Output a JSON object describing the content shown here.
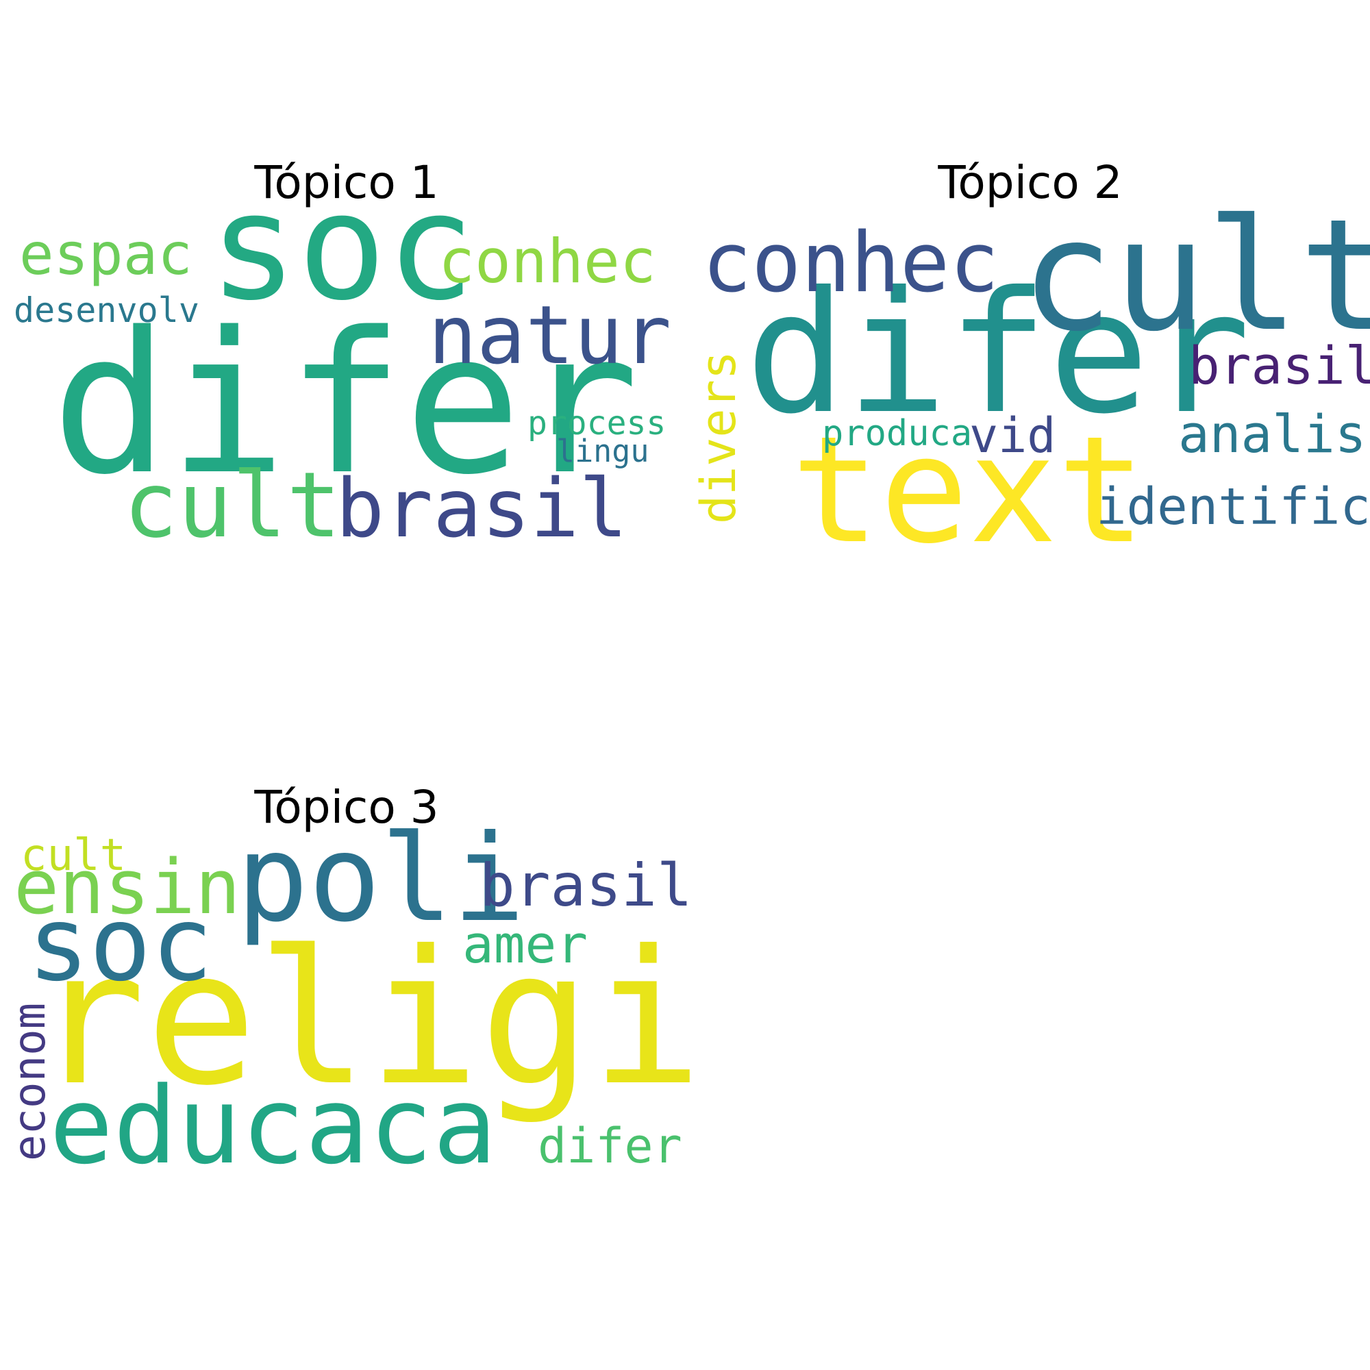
{
  "panels": [
    {
      "title": "Tópico 1",
      "words": [
        {
          "text": "difer",
          "color": "#22a884"
        },
        {
          "text": "soc",
          "color": "#23a983"
        },
        {
          "text": "natur",
          "color": "#3b528b"
        },
        {
          "text": "brasil",
          "color": "#3e4989"
        },
        {
          "text": "cult",
          "color": "#4ec36b"
        },
        {
          "text": "conhec",
          "color": "#8fd744"
        },
        {
          "text": "espac",
          "color": "#6ccd5a"
        },
        {
          "text": "desenvolv",
          "color": "#2a788e"
        },
        {
          "text": "process",
          "color": "#2ab07f"
        },
        {
          "text": "lingu",
          "color": "#2c728e"
        }
      ]
    },
    {
      "title": "Tópico 2",
      "words": [
        {
          "text": "difer",
          "color": "#21908d"
        },
        {
          "text": "cult",
          "color": "#2c738e"
        },
        {
          "text": "text",
          "color": "#fde725"
        },
        {
          "text": "conhec",
          "color": "#3b528b"
        },
        {
          "text": "brasil",
          "color": "#482173"
        },
        {
          "text": "analis",
          "color": "#2a788e"
        },
        {
          "text": "identific",
          "color": "#31688e"
        },
        {
          "text": "divers",
          "color": "#e4e419"
        },
        {
          "text": "vid",
          "color": "#3e4989"
        },
        {
          "text": "produca",
          "color": "#22a884"
        }
      ]
    },
    {
      "title": "Tópico 3",
      "words": [
        {
          "text": "religi",
          "color": "#e8e419"
        },
        {
          "text": "poli",
          "color": "#2c728e"
        },
        {
          "text": "soc",
          "color": "#2c728e"
        },
        {
          "text": "educaca",
          "color": "#21a685"
        },
        {
          "text": "ensin",
          "color": "#7ad151"
        },
        {
          "text": "brasil",
          "color": "#3e4a89"
        },
        {
          "text": "amer",
          "color": "#35b779"
        },
        {
          "text": "cult",
          "color": "#c2df23"
        },
        {
          "text": "econom",
          "color": "#443a83"
        },
        {
          "text": "difer",
          "color": "#4ac16d"
        }
      ]
    }
  ]
}
